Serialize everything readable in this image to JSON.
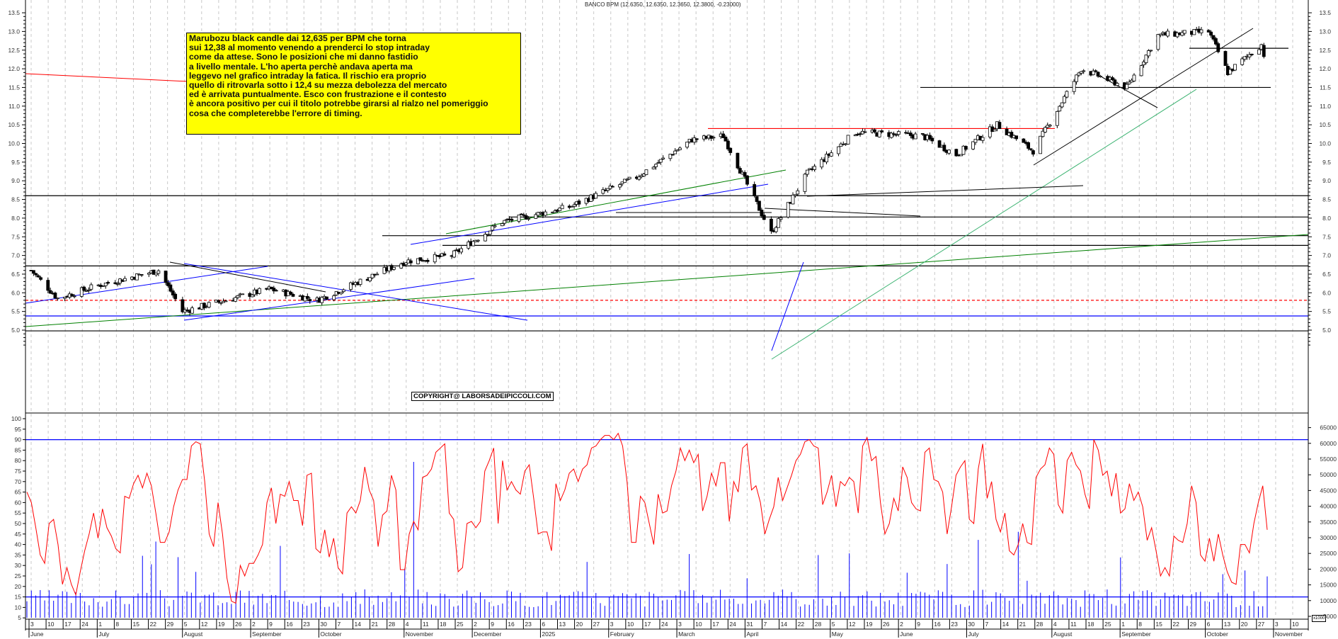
{
  "header": {
    "title": "BANCO BPM (12.6350, 12.6350, 12.3650, 12.3800, -0.23000)"
  },
  "annotation": {
    "lines": [
      "Marubozu black candle dai 12,635 per BPM che torna",
      "sui 12,38 al momento venendo a prenderci lo stop intraday",
      "come da attese. Sono le posizioni che mi danno fastidio",
      "a livello mentale. L'ho aperta perchè andava aperta ma",
      "leggevo nel grafico intraday la fatica. Il rischio era proprio",
      "quello di ritrovarla sotto i 12,4 su mezza debolezza del mercato",
      "ed è arrivata puntualmente.  Esco con frustrazione e il contesto",
      "è ancora positivo per cui il titolo potrebbe girarsi al rialzo nel pomeriggio",
      "cosa che completerebbe l'errore di timing."
    ],
    "background": "#ffff00"
  },
  "watermark": "COPYRIGHT@ LABORSADEIPICCOLI.COM",
  "volume_unit": "x1000",
  "colors": {
    "candle": "#000000",
    "oscillator": "#ff0000",
    "volume": "#0000ff",
    "resistance": "#ff0000",
    "support_dashed": "#ff0000",
    "trend_blue": "#0000ff",
    "trend_green": "#008000",
    "trend_lightgreen": "#3cb371",
    "grid": "#c0c0c0"
  },
  "chart_data": [
    {
      "type": "candlestick",
      "title": "BANCO BPM (12.6350, 12.6350, 12.3650, 12.3800, -0.23000)",
      "symbol": "BANCO BPM",
      "last_bar": {
        "open": 12.635,
        "high": 12.635,
        "low": 12.365,
        "close": 12.38,
        "change": -0.23
      },
      "ylim": [
        4.9,
        13.8
      ],
      "yticks": [
        5.0,
        5.5,
        6.0,
        6.5,
        7.0,
        7.5,
        8.0,
        8.5,
        9.0,
        9.5,
        10.0,
        10.5,
        11.0,
        11.5,
        12.0,
        12.5,
        13.0,
        13.5
      ],
      "grid": "vertical dashed weekly",
      "approx_path": [
        {
          "date": "2024-06-03",
          "close": 6.6
        },
        {
          "date": "2024-06-14",
          "close": 5.85
        },
        {
          "date": "2024-07-01",
          "close": 6.2
        },
        {
          "date": "2024-07-26",
          "close": 6.6
        },
        {
          "date": "2024-08-05",
          "close": 5.5
        },
        {
          "date": "2024-09-10",
          "close": 6.1
        },
        {
          "date": "2024-09-30",
          "close": 5.8
        },
        {
          "date": "2024-10-21",
          "close": 6.4
        },
        {
          "date": "2024-11-06",
          "close": 6.85
        },
        {
          "date": "2024-11-25",
          "close": 7.0
        },
        {
          "date": "2024-12-16",
          "close": 7.9
        },
        {
          "date": "2025-01-13",
          "close": 8.3
        },
        {
          "date": "2025-02-10",
          "close": 9.1
        },
        {
          "date": "2025-03-05",
          "close": 10.1
        },
        {
          "date": "2025-03-18",
          "close": 10.2
        },
        {
          "date": "2025-04-07",
          "close": 7.6
        },
        {
          "date": "2025-04-22",
          "close": 9.2
        },
        {
          "date": "2025-05-12",
          "close": 10.3
        },
        {
          "date": "2025-06-09",
          "close": 10.2
        },
        {
          "date": "2025-06-23",
          "close": 9.7
        },
        {
          "date": "2025-07-10",
          "close": 10.5
        },
        {
          "date": "2025-07-25",
          "close": 9.8
        },
        {
          "date": "2025-08-14",
          "close": 12.0
        },
        {
          "date": "2025-09-02",
          "close": 11.5
        },
        {
          "date": "2025-09-15",
          "close": 12.9
        },
        {
          "date": "2025-10-06",
          "close": 13.0
        },
        {
          "date": "2025-10-14",
          "close": 11.9
        },
        {
          "date": "2025-10-28",
          "close": 12.65
        },
        {
          "date": "2025-10-29",
          "close": 12.38
        }
      ],
      "horizontal_levels": [
        {
          "value": 4.98,
          "color": "#000000",
          "style": "solid"
        },
        {
          "value": 5.38,
          "color": "#0000ff",
          "style": "solid"
        },
        {
          "value": 5.8,
          "color": "#ff0000",
          "style": "dashed"
        },
        {
          "value": 6.72,
          "color": "#000000",
          "style": "solid"
        },
        {
          "value": 7.27,
          "color": "#000000",
          "style": "solid"
        },
        {
          "value": 7.53,
          "color": "#000000",
          "style": "solid"
        },
        {
          "value": 8.03,
          "color": "#000000",
          "style": "solid"
        },
        {
          "value": 8.6,
          "color": "#000000",
          "style": "solid"
        },
        {
          "value": 10.4,
          "color": "#ff0000",
          "style": "solid"
        },
        {
          "value": 11.5,
          "color": "#000000",
          "style": "solid"
        },
        {
          "value": 12.55,
          "color": "#000000",
          "style": "solid"
        }
      ]
    },
    {
      "type": "line+bar",
      "name": "Oscillator and Volume",
      "ylim_left": [
        0,
        102
      ],
      "yticks_left": [
        5,
        10,
        15,
        20,
        25,
        30,
        35,
        40,
        45,
        50,
        55,
        60,
        65,
        70,
        75,
        80,
        85,
        90,
        95,
        100
      ],
      "yticks_right": [
        5000,
        10000,
        15000,
        20000,
        25000,
        30000,
        35000,
        40000,
        45000,
        50000,
        55000,
        60000,
        65000
      ],
      "right_unit": "x1000",
      "reference_lines": [
        90,
        15
      ],
      "oscillator_series": {
        "name": "Oscillator",
        "color": "#ff0000",
        "values": [
          65,
          60,
          48,
          35,
          31,
          50,
          52,
          40,
          21,
          29,
          21,
          16,
          27,
          37,
          45,
          55,
          43,
          57,
          48,
          44,
          38,
          36,
          63,
          62,
          69,
          73,
          67,
          74,
          68,
          55,
          41,
          41,
          46,
          58,
          66,
          71,
          71,
          87,
          89,
          88,
          70,
          45,
          39,
          60,
          45,
          24,
          13,
          12,
          30,
          25,
          31,
          31,
          35,
          40,
          60,
          67,
          50,
          64,
          63,
          70,
          61,
          61,
          49,
          73,
          74,
          38,
          36,
          47,
          34,
          43,
          29,
          26,
          55,
          58,
          55,
          61,
          77,
          66,
          61,
          39,
          54,
          56,
          73,
          66,
          28,
          28,
          45,
          51,
          47,
          72,
          73,
          76,
          84,
          86,
          88,
          55,
          52,
          27,
          29,
          50,
          51,
          48,
          51,
          75,
          80,
          86,
          50,
          80,
          66,
          70,
          66,
          64,
          75,
          78,
          62,
          45,
          46,
          46,
          37,
          69,
          61,
          66,
          74,
          76,
          70,
          76,
          78,
          86,
          87,
          90,
          92,
          92,
          90,
          93,
          87,
          70,
          41,
          41,
          63,
          60,
          50,
          40,
          64,
          55,
          56,
          68,
          75,
          86,
          80,
          85,
          79,
          83,
          56,
          63,
          74,
          68,
          79,
          79,
          51,
          70,
          65,
          86,
          88,
          66,
          68,
          60,
          45,
          52,
          58,
          72,
          61,
          67,
          73,
          80,
          83,
          89,
          90,
          87,
          86,
          59,
          65,
          73,
          58,
          70,
          68,
          72,
          70,
          55,
          87,
          91,
          80,
          82,
          60,
          45,
          50,
          62,
          56,
          77,
          72,
          60,
          57,
          56,
          84,
          86,
          71,
          70,
          65,
          45,
          58,
          73,
          77,
          80,
          52,
          50,
          76,
          88,
          62,
          70,
          52,
          46,
          55,
          37,
          35,
          40,
          50,
          41,
          40,
          72,
          76,
          78,
          86,
          83,
          59,
          55,
          80,
          84,
          78,
          75,
          64,
          57,
          90,
          85,
          73,
          75,
          63,
          74,
          55,
          57,
          69,
          61,
          65,
          58,
          42,
          48,
          37,
          25,
          29,
          25,
          44,
          42,
          41,
          50,
          68,
          60,
          35,
          32,
          43,
          32,
          45,
          35,
          27,
          22,
          21,
          40,
          40,
          36,
          50,
          60,
          68,
          47
        ]
      },
      "volume_series": {
        "name": "Volume (x1000)",
        "color": "#0000ff",
        "note": "daily bars mostly 5000-15000, spikes up to ~61000"
      }
    }
  ],
  "x_axis": {
    "day_ticks": [
      "3",
      "10",
      "17",
      "24",
      "1",
      "8",
      "15",
      "22",
      "29",
      "5",
      "12",
      "19",
      "26",
      "2",
      "9",
      "16",
      "23",
      "30",
      "7",
      "14",
      "21",
      "28",
      "4",
      "11",
      "18",
      "25",
      "2",
      "9",
      "16",
      "23",
      "6",
      "13",
      "20",
      "27",
      "3",
      "10",
      "17",
      "24",
      "3",
      "10",
      "17",
      "24",
      "31",
      "7",
      "14",
      "22",
      "28",
      "5",
      "12",
      "19",
      "26",
      "2",
      "9",
      "16",
      "23",
      "30",
      "7",
      "14",
      "21",
      "28",
      "4",
      "11",
      "18",
      "25",
      "1",
      "8",
      "15",
      "22",
      "29",
      "6",
      "13",
      "20",
      "27",
      "3",
      "10"
    ],
    "months": [
      "June",
      "July",
      "August",
      "September",
      "October",
      "November",
      "December",
      "2025",
      "February",
      "March",
      "April",
      "May",
      "June",
      "July",
      "August",
      "September",
      "October",
      "November"
    ]
  }
}
